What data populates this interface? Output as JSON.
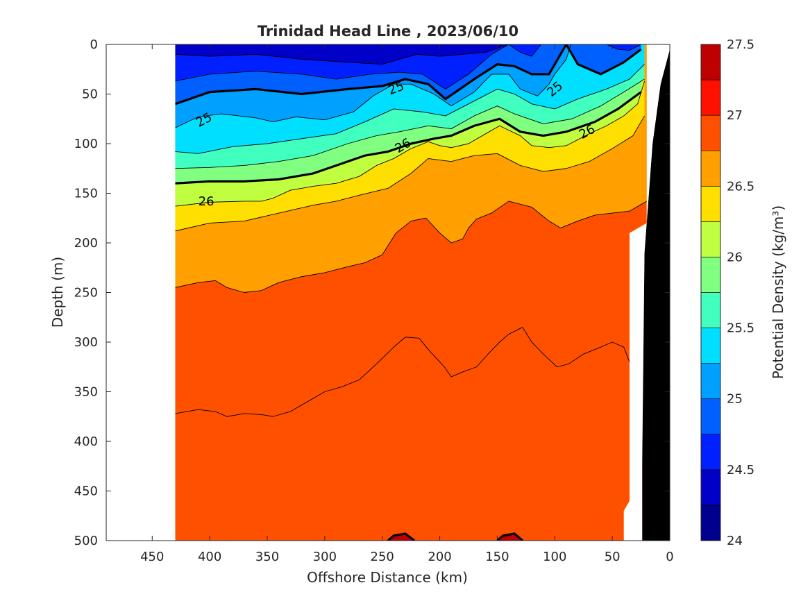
{
  "chart_data": {
    "type": "contour",
    "title": "Trinidad Head Line , 2023/06/10",
    "xlabel": "Offshore Distance (km)",
    "ylabel": "Depth (m)",
    "colorbar_label": "Potential Density (kg/m³)",
    "x_reversed": true,
    "y_reversed": true,
    "xlim": [
      0,
      490
    ],
    "ylim": [
      0,
      500
    ],
    "x_ticks": [
      0,
      50,
      100,
      150,
      200,
      250,
      300,
      350,
      400,
      450
    ],
    "y_ticks": [
      0,
      50,
      100,
      150,
      200,
      250,
      300,
      350,
      400,
      450,
      500
    ],
    "colorbar_range": [
      24,
      27.5
    ],
    "colorbar_step": 0.25,
    "colorbar_ticks": [
      24,
      24.5,
      25,
      25.5,
      26,
      26.5,
      27,
      27.5
    ],
    "color_levels": [
      "#00008f",
      "#0000c8",
      "#0020ff",
      "#0060ff",
      "#00a0ff",
      "#00dfff",
      "#40ffbf",
      "#80ff80",
      "#bfff40",
      "#ffdf00",
      "#ff9f00",
      "#ff5000",
      "#ff1000",
      "#bf0000"
    ],
    "data_extent_km": [
      20,
      430
    ],
    "bathymetry_color": "#000000",
    "contour_lines": [
      {
        "level": 24.25,
        "points": [
          [
            430,
            0
          ],
          [
            380,
            0
          ],
          [
            330,
            0
          ],
          [
            280,
            0
          ],
          [
            230,
            0
          ],
          [
            180,
            0
          ],
          [
            150,
            0
          ],
          [
            140,
            0
          ]
        ]
      },
      {
        "level": 24.5,
        "points": [
          [
            430,
            10
          ],
          [
            400,
            12
          ],
          [
            360,
            10
          ],
          [
            320,
            15
          ],
          [
            280,
            18
          ],
          [
            250,
            20
          ],
          [
            220,
            10
          ],
          [
            200,
            12
          ],
          [
            180,
            10
          ],
          [
            160,
            8
          ],
          [
            140,
            0
          ]
        ]
      },
      {
        "level": 24.75,
        "points": [
          [
            430,
            37
          ],
          [
            400,
            30
          ],
          [
            360,
            27
          ],
          [
            320,
            30
          ],
          [
            290,
            35
          ],
          [
            260,
            30
          ],
          [
            235,
            28
          ],
          [
            215,
            30
          ],
          [
            195,
            45
          ],
          [
            175,
            30
          ],
          [
            155,
            10
          ],
          [
            140,
            0
          ]
        ]
      },
      {
        "level": 24.75,
        "points": [
          [
            140,
            0
          ],
          [
            130,
            8
          ],
          [
            120,
            12
          ],
          [
            112,
            0
          ]
        ]
      },
      {
        "level": 24.75,
        "points": [
          [
            55,
            0
          ],
          [
            45,
            5
          ],
          [
            35,
            6
          ],
          [
            25,
            0
          ]
        ]
      },
      {
        "level": 25,
        "points": [
          [
            430,
            60
          ],
          [
            400,
            48
          ],
          [
            360,
            45
          ],
          [
            320,
            50
          ],
          [
            280,
            45
          ],
          [
            250,
            42
          ],
          [
            230,
            35
          ],
          [
            210,
            40
          ],
          [
            195,
            55
          ],
          [
            170,
            35
          ],
          [
            150,
            20
          ],
          [
            135,
            22
          ],
          [
            120,
            30
          ],
          [
            105,
            30
          ],
          [
            90,
            0
          ]
        ]
      },
      {
        "level": 25,
        "points": [
          [
            90,
            0
          ],
          [
            80,
            20
          ],
          [
            60,
            30
          ],
          [
            40,
            18
          ],
          [
            25,
            5
          ]
        ]
      },
      {
        "level": 25.25,
        "points": [
          [
            430,
            84
          ],
          [
            410,
            73
          ],
          [
            390,
            70
          ],
          [
            360,
            74
          ],
          [
            345,
            78
          ],
          [
            325,
            73
          ],
          [
            300,
            76
          ],
          [
            275,
            68
          ],
          [
            258,
            52
          ],
          [
            240,
            40
          ],
          [
            225,
            40
          ],
          [
            205,
            50
          ],
          [
            190,
            62
          ],
          [
            170,
            48
          ],
          [
            155,
            30
          ],
          [
            140,
            30
          ],
          [
            130,
            45
          ],
          [
            115,
            52
          ],
          [
            105,
            40
          ],
          [
            100,
            30
          ],
          [
            90,
            15
          ],
          [
            86,
            0
          ]
        ]
      },
      {
        "level": 25.5,
        "points": [
          [
            430,
            108
          ],
          [
            410,
            110
          ],
          [
            380,
            103
          ],
          [
            350,
            100
          ],
          [
            320,
            95
          ],
          [
            290,
            90
          ],
          [
            265,
            78
          ],
          [
            240,
            65
          ],
          [
            215,
            68
          ],
          [
            195,
            72
          ],
          [
            175,
            60
          ],
          [
            150,
            45
          ],
          [
            135,
            50
          ],
          [
            120,
            60
          ],
          [
            100,
            65
          ],
          [
            80,
            55
          ],
          [
            55,
            45
          ],
          [
            35,
            35
          ],
          [
            22,
            20
          ]
        ]
      },
      {
        "level": 25.75,
        "points": [
          [
            430,
            125
          ],
          [
            400,
            124
          ],
          [
            370,
            122
          ],
          [
            340,
            118
          ],
          [
            310,
            112
          ],
          [
            280,
            100
          ],
          [
            255,
            92
          ],
          [
            235,
            88
          ],
          [
            210,
            82
          ],
          [
            190,
            85
          ],
          [
            170,
            72
          ],
          [
            150,
            62
          ],
          [
            135,
            70
          ],
          [
            110,
            80
          ],
          [
            85,
            75
          ],
          [
            60,
            62
          ],
          [
            40,
            48
          ],
          [
            22,
            35
          ]
        ]
      },
      {
        "level": 26,
        "points": [
          [
            430,
            140
          ],
          [
            400,
            138
          ],
          [
            370,
            138
          ],
          [
            340,
            136
          ],
          [
            310,
            130
          ],
          [
            285,
            120
          ],
          [
            265,
            112
          ],
          [
            245,
            108
          ],
          [
            225,
            100
          ],
          [
            205,
            95
          ],
          [
            190,
            92
          ],
          [
            170,
            82
          ],
          [
            148,
            75
          ],
          [
            130,
            88
          ],
          [
            110,
            92
          ],
          [
            90,
            88
          ],
          [
            65,
            78
          ],
          [
            45,
            65
          ],
          [
            25,
            48
          ]
        ]
      },
      {
        "level": 26.25,
        "points": [
          [
            430,
            163
          ],
          [
            400,
            159
          ],
          [
            370,
            158
          ],
          [
            355,
            158
          ],
          [
            345,
            155
          ],
          [
            330,
            147
          ],
          [
            310,
            143
          ],
          [
            290,
            140
          ],
          [
            270,
            133
          ],
          [
            255,
            122
          ],
          [
            240,
            115
          ],
          [
            225,
            105
          ],
          [
            210,
            98
          ],
          [
            200,
            102
          ],
          [
            190,
            104
          ],
          [
            175,
            100
          ],
          [
            160,
            90
          ],
          [
            148,
            82
          ],
          [
            130,
            92
          ],
          [
            120,
            102
          ],
          [
            105,
            104
          ],
          [
            90,
            102
          ],
          [
            70,
            90
          ],
          [
            55,
            82
          ],
          [
            40,
            72
          ],
          [
            28,
            60
          ],
          [
            22,
            37
          ]
        ]
      },
      {
        "level": 26.5,
        "points": [
          [
            430,
            188
          ],
          [
            400,
            180
          ],
          [
            370,
            178
          ],
          [
            340,
            170
          ],
          [
            310,
            162
          ],
          [
            290,
            158
          ],
          [
            270,
            152
          ],
          [
            245,
            145
          ],
          [
            225,
            130
          ],
          [
            210,
            115
          ],
          [
            190,
            118
          ],
          [
            170,
            112
          ],
          [
            150,
            110
          ],
          [
            130,
            122
          ],
          [
            110,
            128
          ],
          [
            90,
            125
          ],
          [
            70,
            118
          ],
          [
            50,
            105
          ],
          [
            32,
            92
          ],
          [
            22,
            72
          ]
        ]
      },
      {
        "level": 26.75,
        "points": [
          [
            430,
            245
          ],
          [
            410,
            240
          ],
          [
            395,
            238
          ],
          [
            385,
            245
          ],
          [
            370,
            250
          ],
          [
            355,
            248
          ],
          [
            340,
            240
          ],
          [
            320,
            234
          ],
          [
            300,
            230
          ],
          [
            280,
            224
          ],
          [
            265,
            220
          ],
          [
            250,
            212
          ],
          [
            238,
            190
          ],
          [
            225,
            178
          ],
          [
            212,
            175
          ],
          [
            200,
            190
          ],
          [
            190,
            200
          ],
          [
            180,
            196
          ],
          [
            175,
            185
          ],
          [
            168,
            176
          ],
          [
            155,
            170
          ],
          [
            140,
            158
          ],
          [
            120,
            164
          ],
          [
            105,
            178
          ],
          [
            95,
            185
          ],
          [
            80,
            178
          ],
          [
            65,
            172
          ],
          [
            50,
            170
          ],
          [
            35,
            168
          ],
          [
            20,
            158
          ]
        ]
      },
      {
        "level": 27,
        "points": [
          [
            430,
            372
          ],
          [
            410,
            368
          ],
          [
            395,
            370
          ],
          [
            385,
            375
          ],
          [
            370,
            372
          ],
          [
            355,
            373
          ],
          [
            345,
            375
          ],
          [
            330,
            370
          ],
          [
            315,
            360
          ],
          [
            300,
            350
          ],
          [
            285,
            345
          ],
          [
            270,
            338
          ],
          [
            255,
            322
          ],
          [
            240,
            305
          ],
          [
            230,
            295
          ],
          [
            218,
            296
          ],
          [
            208,
            310
          ],
          [
            196,
            325
          ],
          [
            190,
            335
          ],
          [
            180,
            330
          ],
          [
            168,
            325
          ],
          [
            158,
            312
          ],
          [
            148,
            300
          ],
          [
            140,
            292
          ],
          [
            128,
            285
          ],
          [
            120,
            300
          ],
          [
            110,
            312
          ],
          [
            98,
            325
          ],
          [
            88,
            322
          ],
          [
            75,
            312
          ],
          [
            62,
            306
          ],
          [
            50,
            300
          ],
          [
            40,
            305
          ],
          [
            34,
            323
          ],
          [
            30,
            350
          ]
        ]
      },
      {
        "level": 27.25,
        "points": [
          [
            245,
            500
          ],
          [
            240,
            495
          ],
          [
            230,
            493
          ],
          [
            222,
            500
          ]
        ]
      },
      {
        "level": 27.25,
        "points": [
          [
            150,
            500
          ],
          [
            145,
            495
          ],
          [
            135,
            493
          ],
          [
            128,
            500
          ]
        ]
      }
    ],
    "labeled_isopycnals": [
      25,
      26
    ],
    "contour_labels": [
      {
        "text": "25",
        "x": 405,
        "y": 76,
        "angle": -28
      },
      {
        "text": "25",
        "x": 238,
        "y": 44,
        "angle": -20
      },
      {
        "text": "25",
        "x": 100,
        "y": 45,
        "angle": -40
      },
      {
        "text": "26",
        "x": 403,
        "y": 158,
        "angle": 0
      },
      {
        "text": "26",
        "x": 232,
        "y": 102,
        "angle": -30
      },
      {
        "text": "26",
        "x": 72,
        "y": 88,
        "angle": -28
      }
    ]
  }
}
